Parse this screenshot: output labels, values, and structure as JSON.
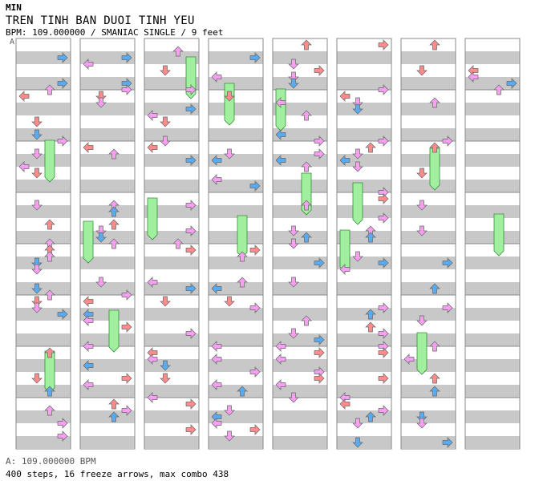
{
  "header": {
    "difficulty": "MIN",
    "title": "TREN TINH BAN DUOI TINH YEU",
    "meta": "BPM: 109.000000 / SMANIAC SINGLE / 9 feet"
  },
  "marker": "A",
  "footer": {
    "bpm_line": "A: 109.000000 BPM",
    "stats_line": "400 steps, 16 freeze arrows, max combo 438"
  },
  "colors": {
    "stripe": "#c8c8c8",
    "quarter": "#ff8c8c",
    "eighth": "#5aaaf0",
    "sixteenth": "#f5a0f0",
    "freeze": "#a0f0a0"
  },
  "chart_data": {
    "type": "table",
    "song": "TREN TINH BAN DUOI TINH YEU",
    "bpm": 109.0,
    "style": "SMANIAC SINGLE",
    "rating": "9 feet",
    "total_steps": 400,
    "freeze_arrows": 16,
    "max_combo": 438,
    "columns_shown": 8,
    "measures_per_column": 8
  }
}
